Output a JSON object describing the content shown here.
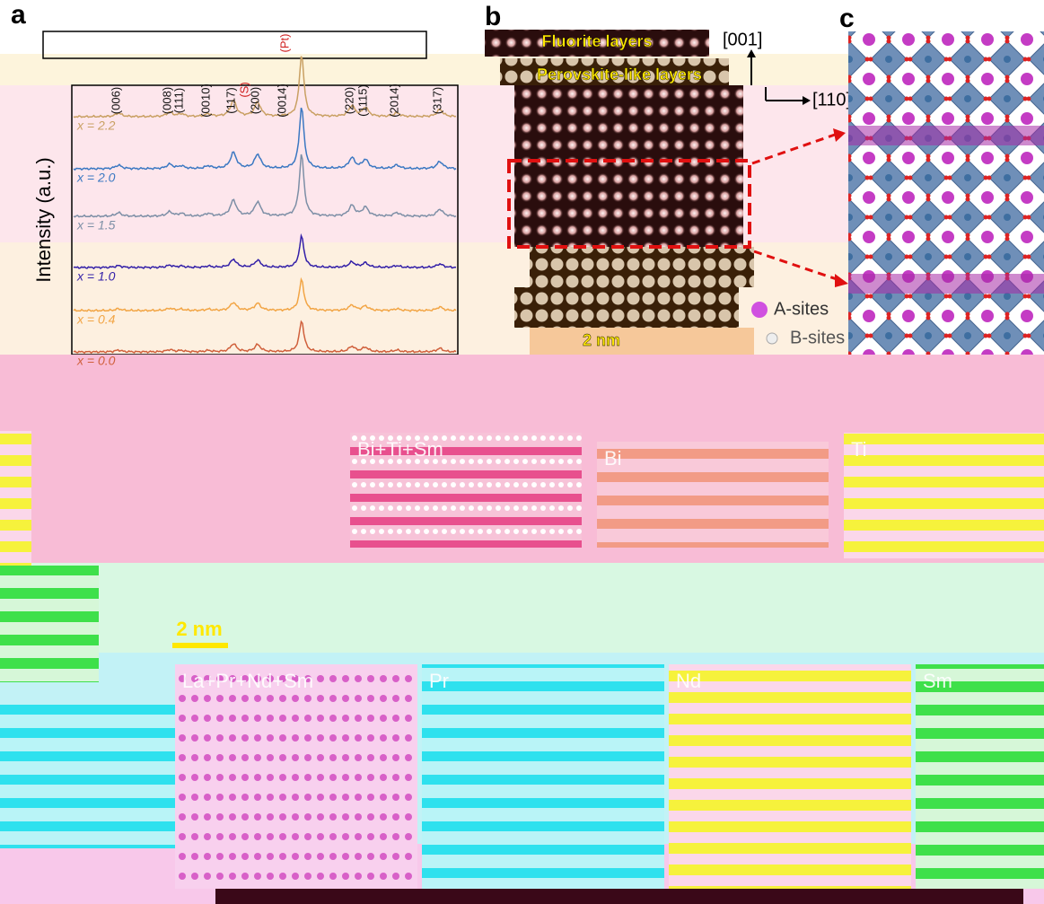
{
  "panels": {
    "a": "a",
    "b": "b",
    "c": "c"
  },
  "panel_a": {
    "y_axis_label": "Intensity (a.u.)",
    "substrate_labels": [
      "(Pt)",
      "(S)"
    ],
    "peak_labels": [
      "(006)",
      "(008)",
      "(111)",
      "(0010)",
      "(117)",
      "(200)",
      "(0014)",
      "(220)",
      "(1115)",
      "(2014)",
      "(317)"
    ],
    "curves": [
      {
        "label": "x = 2.2",
        "color": "#c9a063"
      },
      {
        "label": "x = 2.0",
        "color": "#3b78c2"
      },
      {
        "label": "x = 1.5",
        "color": "#7d8fa6"
      },
      {
        "label": "x = 1.0",
        "color": "#3320a8"
      },
      {
        "label": "x = 0.4",
        "color": "#f2a545"
      },
      {
        "label": "x = 0.0",
        "color": "#d0603c"
      }
    ]
  },
  "panel_b": {
    "layer_labels": [
      "Fluorite layers",
      "Perovskite-like layers"
    ],
    "orientation_labels": [
      "[001]",
      "[110]"
    ],
    "scale_bar": "2 nm"
  },
  "panel_c": {
    "legend": [
      "A-sites",
      "B-sites"
    ]
  },
  "eds": {
    "scale_bar": "2 nm",
    "maps": [
      "Bi+Ti+Sm",
      "Bi",
      "Ti",
      "La+Pr+Nd+Sm",
      "Pr",
      "Nd",
      "Sm"
    ]
  }
}
